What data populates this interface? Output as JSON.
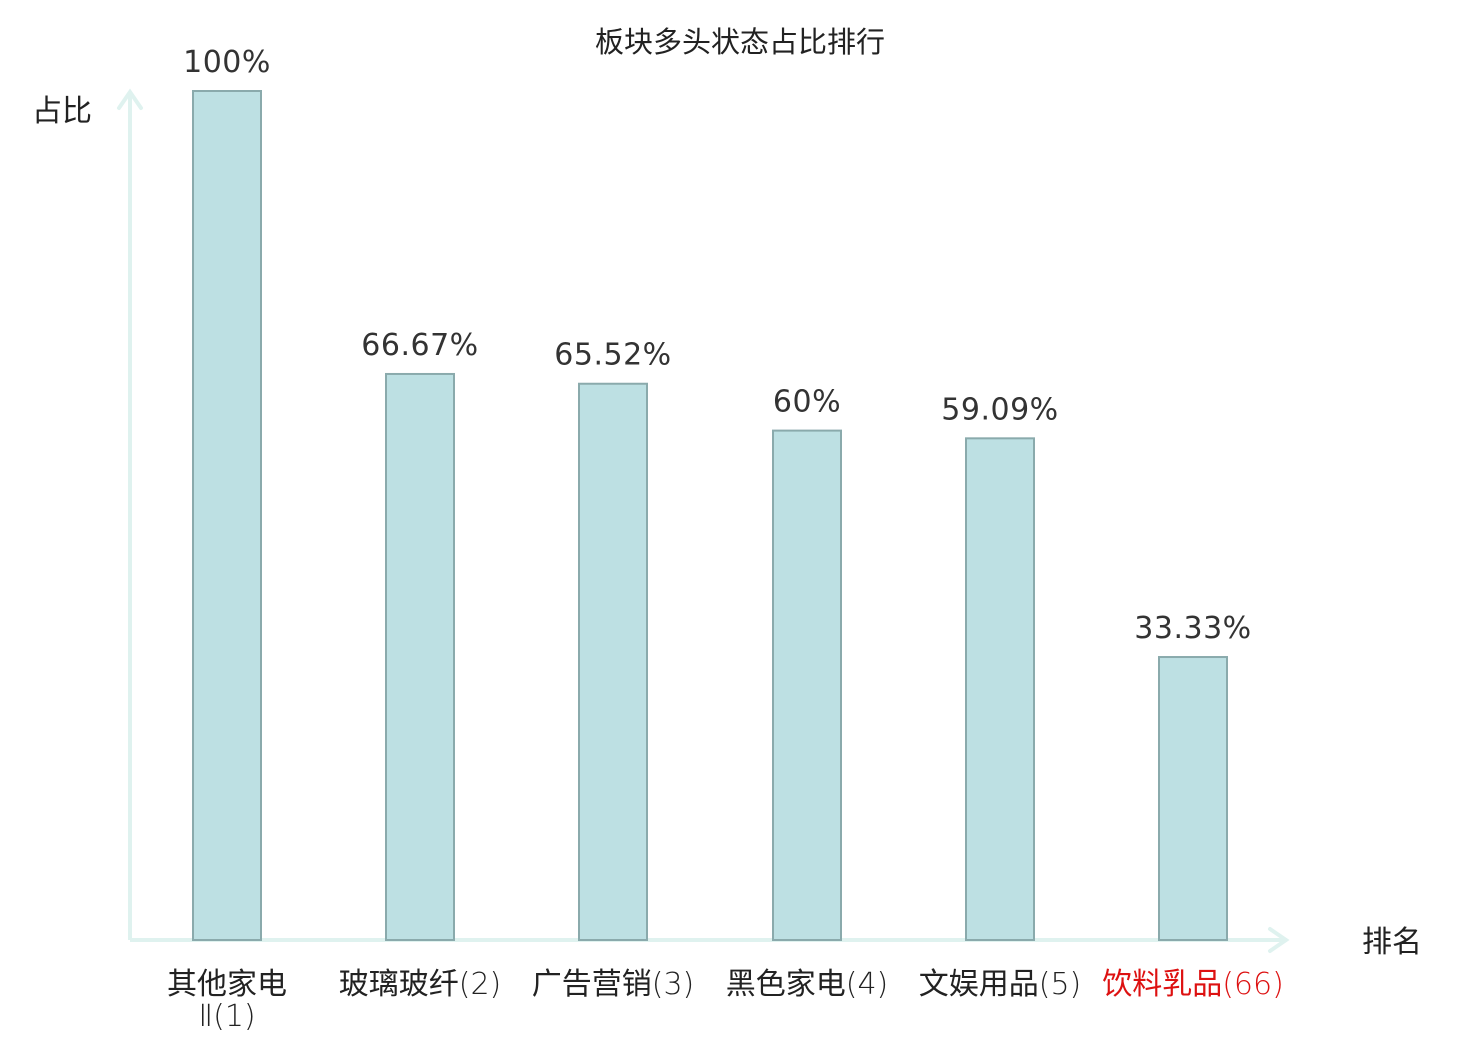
{
  "chart_data": {
    "type": "bar",
    "title": "板块多头状态占比排行",
    "xlabel": "排名",
    "ylabel": "占比",
    "ylim": [
      0,
      100
    ],
    "grid": false,
    "categories": [
      {
        "name": "其他家电",
        "rank": "Ⅱ(1)",
        "highlight": false
      },
      {
        "name": "玻璃玻纤",
        "rank": "(2)",
        "highlight": false
      },
      {
        "name": "广告营销",
        "rank": "(3)",
        "highlight": false
      },
      {
        "name": "黑色家电",
        "rank": "(4)",
        "highlight": false
      },
      {
        "name": "文娱用品",
        "rank": "(5)",
        "highlight": false
      },
      {
        "name": "饮料乳品",
        "rank": "(66)",
        "highlight": true
      }
    ],
    "values": [
      100,
      66.67,
      65.52,
      60,
      59.09,
      33.33
    ],
    "value_labels": [
      "100%",
      "66.67%",
      "65.52%",
      "60%",
      "59.09%",
      "33.33%"
    ]
  },
  "colors": {
    "bar_fill": "#bde0e3",
    "bar_stroke": "#8aaaac",
    "axis": "#dff2ef",
    "text": "#222222",
    "highlight": "#dd1111"
  }
}
